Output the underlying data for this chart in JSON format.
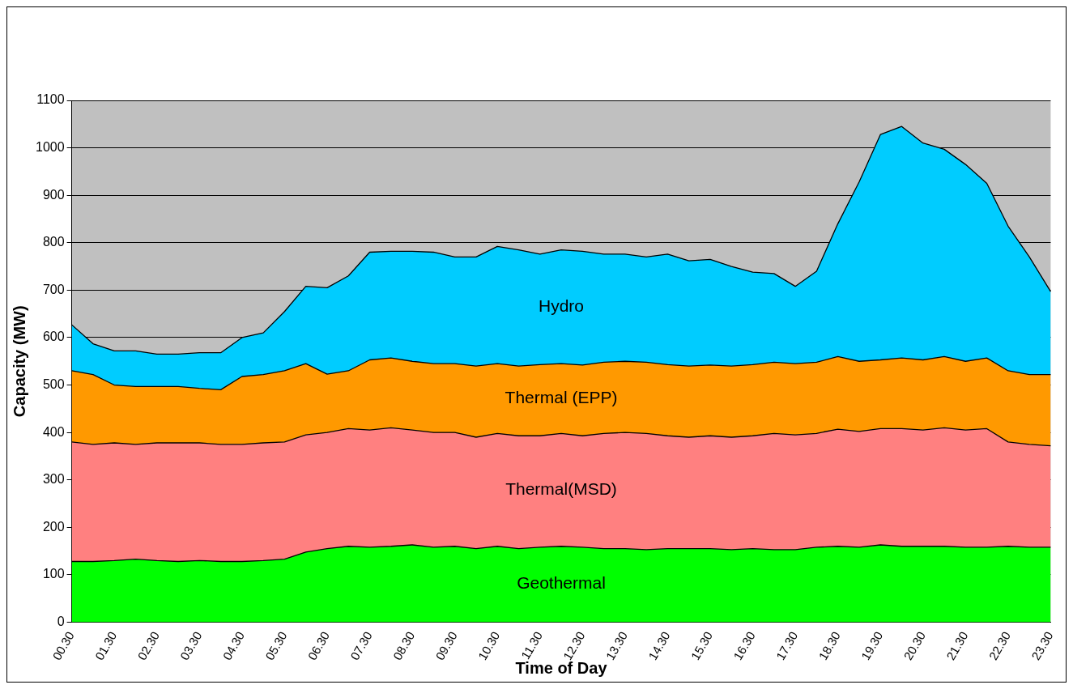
{
  "chart_data": {
    "type": "area",
    "stacked": true,
    "xlabel": "Time of Day",
    "ylabel": "Capacity (MW)",
    "categories": [
      "00.30",
      null,
      "01.30",
      null,
      "02.30",
      null,
      "03.30",
      null,
      "04.30",
      null,
      "05.30",
      null,
      "06.30",
      null,
      "07.30",
      null,
      "08.30",
      null,
      "09.30",
      null,
      "10.30",
      null,
      "11.30",
      null,
      "12.30",
      null,
      "13.30",
      null,
      "14.30",
      null,
      "15.30",
      null,
      "16.30",
      null,
      "17.30",
      null,
      "18.30",
      null,
      "19.30",
      null,
      "20.30",
      null,
      "21.30",
      null,
      "22.30",
      null,
      "23.30"
    ],
    "series": [
      {
        "name": "Geothermal",
        "color": "#00ff00",
        "values": [
          128,
          128,
          130,
          133,
          130,
          128,
          130,
          128,
          128,
          130,
          133,
          148,
          155,
          160,
          158,
          160,
          163,
          158,
          160,
          155,
          160,
          155,
          158,
          160,
          158,
          155,
          155,
          153,
          155,
          155,
          155,
          153,
          155,
          153,
          153,
          158,
          160,
          158,
          163,
          160,
          160,
          160,
          158,
          158,
          160,
          158,
          158
        ]
      },
      {
        "name": "Thermal(MSD)",
        "color": "#ff8080",
        "values": [
          252,
          247,
          248,
          242,
          248,
          250,
          248,
          247,
          247,
          248,
          247,
          247,
          245,
          248,
          247,
          250,
          242,
          242,
          240,
          235,
          238,
          238,
          235,
          238,
          235,
          243,
          245,
          245,
          238,
          235,
          238,
          237,
          238,
          245,
          242,
          240,
          247,
          244,
          245,
          248,
          245,
          250,
          247,
          250,
          220,
          217,
          214
        ]
      },
      {
        "name": "Thermal (EPP)",
        "color": "#ff9900",
        "values": [
          150,
          147,
          122,
          122,
          119,
          119,
          115,
          115,
          143,
          144,
          150,
          150,
          123,
          122,
          148,
          147,
          145,
          145,
          145,
          150,
          147,
          147,
          150,
          147,
          149,
          150,
          150,
          150,
          150,
          150,
          149,
          150,
          150,
          150,
          150,
          150,
          153,
          148,
          145,
          149,
          148,
          150,
          145,
          149,
          150,
          147,
          150
        ]
      },
      {
        "name": "Hydro",
        "color": "#00ccff",
        "values": [
          97,
          65,
          72,
          75,
          68,
          68,
          75,
          78,
          82,
          88,
          125,
          163,
          182,
          200,
          227,
          225,
          232,
          235,
          225,
          230,
          247,
          245,
          233,
          240,
          240,
          228,
          226,
          222,
          233,
          222,
          223,
          210,
          195,
          187,
          163,
          192,
          280,
          378,
          475,
          488,
          457,
          437,
          415,
          368,
          305,
          248,
          175
        ]
      }
    ],
    "ylim": [
      0,
      1100
    ],
    "yticks": [
      0,
      100,
      200,
      300,
      400,
      500,
      600,
      700,
      800,
      900,
      1000,
      1100
    ],
    "grid": "y",
    "legend": false
  }
}
